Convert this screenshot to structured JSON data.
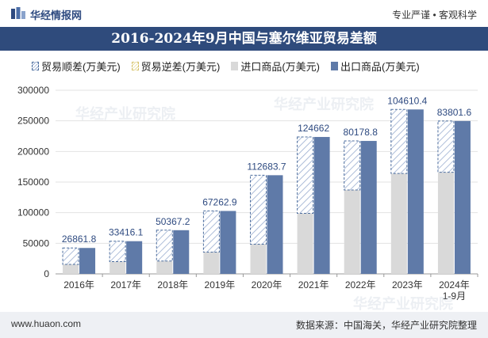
{
  "header": {
    "logo_text": "华经情报网",
    "tagline": "专业严谨 • 客观科学"
  },
  "watermark": {
    "text": "华经产业研究院",
    "url": "www.huaon.com"
  },
  "footer": {
    "url": "www.huaon.com",
    "source": "数据来源：中国海关，华经产业研究院整理"
  },
  "colors": {
    "title_bar": "#2f4b7c",
    "export_bar": "#5f7aa8",
    "import_bar": "#d9d9d9",
    "surplus_hatch": "#4d6e9e",
    "label_color": "#2e4a80"
  },
  "chart_data": {
    "type": "bar",
    "title": "2016-2024年9月中国与塞尔维亚贸易差额",
    "categories": [
      "2016年",
      "2017年",
      "2018年",
      "2019年",
      "2020年",
      "2021年",
      "2022年",
      "2023年",
      "2024年\n1-9月"
    ],
    "legend": [
      "贸易顺差(万美元)",
      "贸易逆差(万美元)",
      "进口商品(万美元)",
      "出口商品(万美元)"
    ],
    "legend_position": "top",
    "series": [
      {
        "name": "贸易顺差(万美元)",
        "values": [
          26861.8,
          33416.1,
          50367.2,
          67262.9,
          112683.7,
          124662,
          80178.8,
          104610.4,
          83801.6
        ]
      },
      {
        "name": "贸易逆差(万美元)",
        "values": [
          null,
          null,
          null,
          null,
          null,
          null,
          null,
          null,
          null
        ]
      },
      {
        "name": "进口商品(万美元)",
        "values": [
          15500,
          20000,
          21000,
          35500,
          48500,
          99000,
          137000,
          164000,
          166000
        ]
      },
      {
        "name": "出口商品(万美元)",
        "values": [
          42362,
          53416,
          71367,
          102763,
          161184,
          223662,
          217179,
          268610,
          249802
        ]
      }
    ],
    "data_labels": [
      "26861.8",
      "33416.1",
      "50367.2",
      "67262.9",
      "112683.7",
      "124662",
      "80178.8",
      "104610.4",
      "83801.6"
    ],
    "y_ticks": [
      "0",
      "50000",
      "100000",
      "150000",
      "200000",
      "250000",
      "300000"
    ],
    "ylim": [
      0,
      300000
    ],
    "grid": true
  }
}
